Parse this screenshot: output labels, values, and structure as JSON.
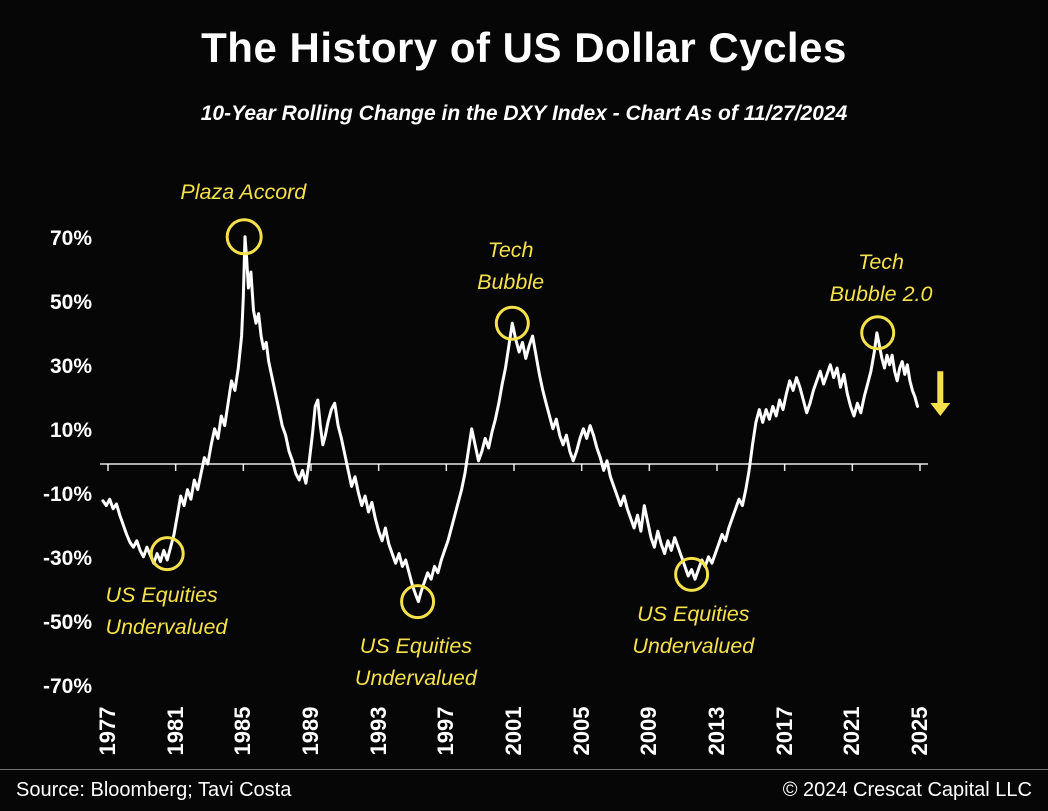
{
  "colors": {
    "background": "#060606",
    "line": "#FFFFFF",
    "accent": "#F5E14B",
    "text": "#FFFFFF"
  },
  "chart_data": {
    "type": "line",
    "title": "The History of US Dollar Cycles",
    "subtitle": "10-Year Rolling Change in the DXY Index - Chart As of 11/27/2024",
    "xlabel": "",
    "ylabel": "",
    "ylim": [
      -70,
      70
    ],
    "xlim": [
      1977,
      2025
    ],
    "grid": false,
    "legend": "none",
    "zero_line": true,
    "y_ticks": [
      {
        "value": 70,
        "label": "70%"
      },
      {
        "value": 50,
        "label": "50%"
      },
      {
        "value": 30,
        "label": "30%"
      },
      {
        "value": 10,
        "label": "10%"
      },
      {
        "value": -10,
        "label": "-10%"
      },
      {
        "value": -30,
        "label": "-30%"
      },
      {
        "value": -50,
        "label": "-50%"
      },
      {
        "value": -70,
        "label": "-70%"
      }
    ],
    "x_ticks": [
      {
        "value": 1977,
        "label": "1977"
      },
      {
        "value": 1981,
        "label": "1981"
      },
      {
        "value": 1985,
        "label": "1985"
      },
      {
        "value": 1989,
        "label": "1989"
      },
      {
        "value": 1993,
        "label": "1993"
      },
      {
        "value": 1997,
        "label": "1997"
      },
      {
        "value": 2001,
        "label": "2001"
      },
      {
        "value": 2005,
        "label": "2005"
      },
      {
        "value": 2009,
        "label": "2009"
      },
      {
        "value": 2013,
        "label": "2013"
      },
      {
        "value": 2017,
        "label": "2017"
      },
      {
        "value": 2021,
        "label": "2021"
      },
      {
        "value": 2025,
        "label": "2025"
      }
    ],
    "series": [
      {
        "name": "DXY Index 10-Year Rolling Change (%)",
        "color": "#FFFFFF",
        "points": [
          [
            1976.7,
            -11.5
          ],
          [
            1976.9,
            -13
          ],
          [
            1977.1,
            -11
          ],
          [
            1977.3,
            -14
          ],
          [
            1977.5,
            -12.5
          ],
          [
            1977.7,
            -16
          ],
          [
            1977.9,
            -19
          ],
          [
            1978.1,
            -22
          ],
          [
            1978.3,
            -24.5
          ],
          [
            1978.5,
            -26
          ],
          [
            1978.7,
            -24
          ],
          [
            1978.9,
            -27
          ],
          [
            1979.1,
            -29
          ],
          [
            1979.3,
            -26
          ],
          [
            1979.5,
            -28.5
          ],
          [
            1979.7,
            -31
          ],
          [
            1979.9,
            -28
          ],
          [
            1980.1,
            -30.5
          ],
          [
            1980.3,
            -27
          ],
          [
            1980.5,
            -30
          ],
          [
            1980.7,
            -26
          ],
          [
            1980.9,
            -22
          ],
          [
            1981.1,
            -16
          ],
          [
            1981.3,
            -10
          ],
          [
            1981.5,
            -13
          ],
          [
            1981.7,
            -8
          ],
          [
            1981.9,
            -11
          ],
          [
            1982.1,
            -5
          ],
          [
            1982.3,
            -8
          ],
          [
            1982.5,
            -3
          ],
          [
            1982.7,
            2
          ],
          [
            1982.9,
            0
          ],
          [
            1983.1,
            6
          ],
          [
            1983.3,
            11
          ],
          [
            1983.5,
            8
          ],
          [
            1983.7,
            15
          ],
          [
            1983.9,
            12
          ],
          [
            1984.1,
            19
          ],
          [
            1984.3,
            26
          ],
          [
            1984.5,
            23
          ],
          [
            1984.7,
            30
          ],
          [
            1984.9,
            40
          ],
          [
            1985.0,
            52
          ],
          [
            1985.1,
            71
          ],
          [
            1985.2,
            64
          ],
          [
            1985.3,
            55
          ],
          [
            1985.45,
            60
          ],
          [
            1985.6,
            48
          ],
          [
            1985.75,
            44
          ],
          [
            1985.9,
            47
          ],
          [
            1986.05,
            40
          ],
          [
            1986.2,
            36
          ],
          [
            1986.35,
            38
          ],
          [
            1986.5,
            32
          ],
          [
            1986.7,
            27
          ],
          [
            1986.9,
            22
          ],
          [
            1987.1,
            17
          ],
          [
            1987.3,
            12
          ],
          [
            1987.5,
            9
          ],
          [
            1987.7,
            4
          ],
          [
            1987.9,
            1
          ],
          [
            1988.1,
            -3
          ],
          [
            1988.3,
            -5
          ],
          [
            1988.5,
            -2
          ],
          [
            1988.7,
            -6
          ],
          [
            1988.9,
            1
          ],
          [
            1989.1,
            10
          ],
          [
            1989.25,
            18
          ],
          [
            1989.4,
            20
          ],
          [
            1989.55,
            12
          ],
          [
            1989.7,
            6
          ],
          [
            1989.85,
            9
          ],
          [
            1990.0,
            13
          ],
          [
            1990.2,
            17
          ],
          [
            1990.4,
            19
          ],
          [
            1990.6,
            12
          ],
          [
            1990.8,
            8
          ],
          [
            1991.0,
            3
          ],
          [
            1991.2,
            -2
          ],
          [
            1991.4,
            -7
          ],
          [
            1991.6,
            -4
          ],
          [
            1991.8,
            -9
          ],
          [
            1992.0,
            -13
          ],
          [
            1992.2,
            -10
          ],
          [
            1992.4,
            -15
          ],
          [
            1992.6,
            -12
          ],
          [
            1992.8,
            -17
          ],
          [
            1993.0,
            -21
          ],
          [
            1993.2,
            -24
          ],
          [
            1993.4,
            -20
          ],
          [
            1993.6,
            -25
          ],
          [
            1993.8,
            -28
          ],
          [
            1994.0,
            -31
          ],
          [
            1994.2,
            -28
          ],
          [
            1994.4,
            -32
          ],
          [
            1994.6,
            -30
          ],
          [
            1994.8,
            -34
          ],
          [
            1995.0,
            -38
          ],
          [
            1995.2,
            -41
          ],
          [
            1995.35,
            -43
          ],
          [
            1995.5,
            -40
          ],
          [
            1995.7,
            -37
          ],
          [
            1995.9,
            -34
          ],
          [
            1996.1,
            -36
          ],
          [
            1996.3,
            -32
          ],
          [
            1996.5,
            -34
          ],
          [
            1996.7,
            -30
          ],
          [
            1996.9,
            -27
          ],
          [
            1997.1,
            -24
          ],
          [
            1997.3,
            -20
          ],
          [
            1997.5,
            -16
          ],
          [
            1997.7,
            -12
          ],
          [
            1997.9,
            -8
          ],
          [
            1998.1,
            -3
          ],
          [
            1998.3,
            4
          ],
          [
            1998.5,
            11
          ],
          [
            1998.7,
            6
          ],
          [
            1998.9,
            1
          ],
          [
            1999.1,
            4
          ],
          [
            1999.3,
            8
          ],
          [
            1999.5,
            5
          ],
          [
            1999.7,
            10
          ],
          [
            1999.9,
            14
          ],
          [
            2000.1,
            19
          ],
          [
            2000.3,
            25
          ],
          [
            2000.5,
            30
          ],
          [
            2000.7,
            37
          ],
          [
            2000.9,
            44
          ],
          [
            2001.1,
            39
          ],
          [
            2001.3,
            35
          ],
          [
            2001.5,
            38
          ],
          [
            2001.7,
            33
          ],
          [
            2001.9,
            37
          ],
          [
            2002.1,
            40
          ],
          [
            2002.3,
            34
          ],
          [
            2002.5,
            28
          ],
          [
            2002.7,
            23
          ],
          [
            2002.9,
            19
          ],
          [
            2003.1,
            15
          ],
          [
            2003.3,
            11
          ],
          [
            2003.5,
            14
          ],
          [
            2003.7,
            9
          ],
          [
            2003.9,
            6
          ],
          [
            2004.1,
            9
          ],
          [
            2004.3,
            4
          ],
          [
            2004.5,
            1
          ],
          [
            2004.7,
            4
          ],
          [
            2004.9,
            8
          ],
          [
            2005.1,
            11
          ],
          [
            2005.3,
            8
          ],
          [
            2005.5,
            12
          ],
          [
            2005.7,
            9
          ],
          [
            2005.9,
            5
          ],
          [
            2006.1,
            2
          ],
          [
            2006.3,
            -2
          ],
          [
            2006.5,
            1
          ],
          [
            2006.7,
            -4
          ],
          [
            2006.9,
            -7
          ],
          [
            2007.1,
            -10
          ],
          [
            2007.3,
            -13
          ],
          [
            2007.5,
            -10
          ],
          [
            2007.7,
            -14
          ],
          [
            2007.9,
            -17
          ],
          [
            2008.1,
            -20
          ],
          [
            2008.3,
            -16
          ],
          [
            2008.5,
            -21
          ],
          [
            2008.7,
            -13
          ],
          [
            2008.9,
            -18
          ],
          [
            2009.1,
            -23
          ],
          [
            2009.3,
            -26
          ],
          [
            2009.5,
            -21
          ],
          [
            2009.7,
            -25
          ],
          [
            2009.9,
            -28
          ],
          [
            2010.1,
            -24
          ],
          [
            2010.3,
            -27
          ],
          [
            2010.5,
            -23
          ],
          [
            2010.7,
            -26
          ],
          [
            2010.9,
            -29
          ],
          [
            2011.1,
            -32
          ],
          [
            2011.3,
            -35
          ],
          [
            2011.5,
            -33
          ],
          [
            2011.7,
            -36
          ],
          [
            2011.9,
            -33
          ],
          [
            2012.1,
            -30
          ],
          [
            2012.3,
            -32
          ],
          [
            2012.5,
            -29
          ],
          [
            2012.7,
            -31
          ],
          [
            2012.9,
            -28
          ],
          [
            2013.1,
            -25
          ],
          [
            2013.3,
            -22
          ],
          [
            2013.5,
            -24
          ],
          [
            2013.7,
            -20
          ],
          [
            2013.9,
            -17
          ],
          [
            2014.1,
            -14
          ],
          [
            2014.3,
            -11
          ],
          [
            2014.5,
            -13
          ],
          [
            2014.7,
            -8
          ],
          [
            2014.9,
            -2
          ],
          [
            2015.1,
            6
          ],
          [
            2015.3,
            13
          ],
          [
            2015.5,
            17
          ],
          [
            2015.7,
            13
          ],
          [
            2015.9,
            17
          ],
          [
            2016.1,
            14
          ],
          [
            2016.3,
            18
          ],
          [
            2016.5,
            15
          ],
          [
            2016.7,
            20
          ],
          [
            2016.9,
            17
          ],
          [
            2017.1,
            22
          ],
          [
            2017.3,
            26
          ],
          [
            2017.5,
            23
          ],
          [
            2017.7,
            27
          ],
          [
            2017.9,
            24
          ],
          [
            2018.1,
            20
          ],
          [
            2018.3,
            16
          ],
          [
            2018.5,
            19
          ],
          [
            2018.7,
            23
          ],
          [
            2018.9,
            26
          ],
          [
            2019.1,
            29
          ],
          [
            2019.3,
            25
          ],
          [
            2019.5,
            28
          ],
          [
            2019.7,
            31
          ],
          [
            2019.9,
            27
          ],
          [
            2020.1,
            30
          ],
          [
            2020.3,
            24
          ],
          [
            2020.5,
            28
          ],
          [
            2020.7,
            22
          ],
          [
            2020.9,
            18
          ],
          [
            2021.1,
            15
          ],
          [
            2021.3,
            19
          ],
          [
            2021.5,
            16
          ],
          [
            2021.7,
            21
          ],
          [
            2021.9,
            25
          ],
          [
            2022.1,
            29
          ],
          [
            2022.3,
            35
          ],
          [
            2022.45,
            41
          ],
          [
            2022.6,
            37
          ],
          [
            2022.75,
            33
          ],
          [
            2022.9,
            30
          ],
          [
            2023.05,
            34
          ],
          [
            2023.2,
            31
          ],
          [
            2023.35,
            34
          ],
          [
            2023.5,
            29
          ],
          [
            2023.65,
            26
          ],
          [
            2023.8,
            30
          ],
          [
            2023.95,
            32
          ],
          [
            2024.1,
            28
          ],
          [
            2024.25,
            31
          ],
          [
            2024.4,
            26
          ],
          [
            2024.55,
            23
          ],
          [
            2024.7,
            21
          ],
          [
            2024.85,
            18
          ]
        ]
      }
    ],
    "annotations": [
      {
        "id": "plaza-accord",
        "lines": [
          "Plaza Accord"
        ],
        "circle": {
          "year": 1985.05,
          "value": 71,
          "r": 17
        },
        "label": {
          "year": 1985.0,
          "value": 85,
          "align": "center"
        }
      },
      {
        "id": "tech-bubble",
        "lines": [
          "Tech",
          "Bubble"
        ],
        "circle": {
          "year": 2000.9,
          "value": 44,
          "r": 16
        },
        "label": {
          "year": 2000.8,
          "value": 62,
          "align": "center"
        }
      },
      {
        "id": "tech-bubble-2-0",
        "lines": [
          "Tech",
          "Bubble 2.0"
        ],
        "circle": {
          "year": 2022.5,
          "value": 41,
          "r": 16
        },
        "label": {
          "year": 2022.7,
          "value": 58,
          "align": "center"
        }
      },
      {
        "id": "us-equities-undervalued-1",
        "lines": [
          "US Equities",
          "Undervalued"
        ],
        "circle": {
          "year": 1980.5,
          "value": -28,
          "r": 16
        },
        "label": {
          "year": 1976.85,
          "value": -46,
          "align": "left"
        }
      },
      {
        "id": "us-equities-undervalued-2",
        "lines": [
          "US Equities",
          "Undervalued"
        ],
        "circle": {
          "year": 1995.3,
          "value": -43,
          "r": 16
        },
        "label": {
          "year": 1995.2,
          "value": -62,
          "align": "center"
        }
      },
      {
        "id": "us-equities-undervalued-3",
        "lines": [
          "US Equities",
          "Undervalued"
        ],
        "circle": {
          "year": 2011.5,
          "value": -34.5,
          "r": 16
        },
        "label": {
          "year": 2011.6,
          "value": -52,
          "align": "center"
        }
      }
    ],
    "arrow": {
      "year": 2026.2,
      "from_value": 29,
      "to_value": 15
    }
  },
  "footer": {
    "source": "Source: Bloomberg; Tavi Costa",
    "copyright": "© 2024 Crescat Capital LLC"
  }
}
